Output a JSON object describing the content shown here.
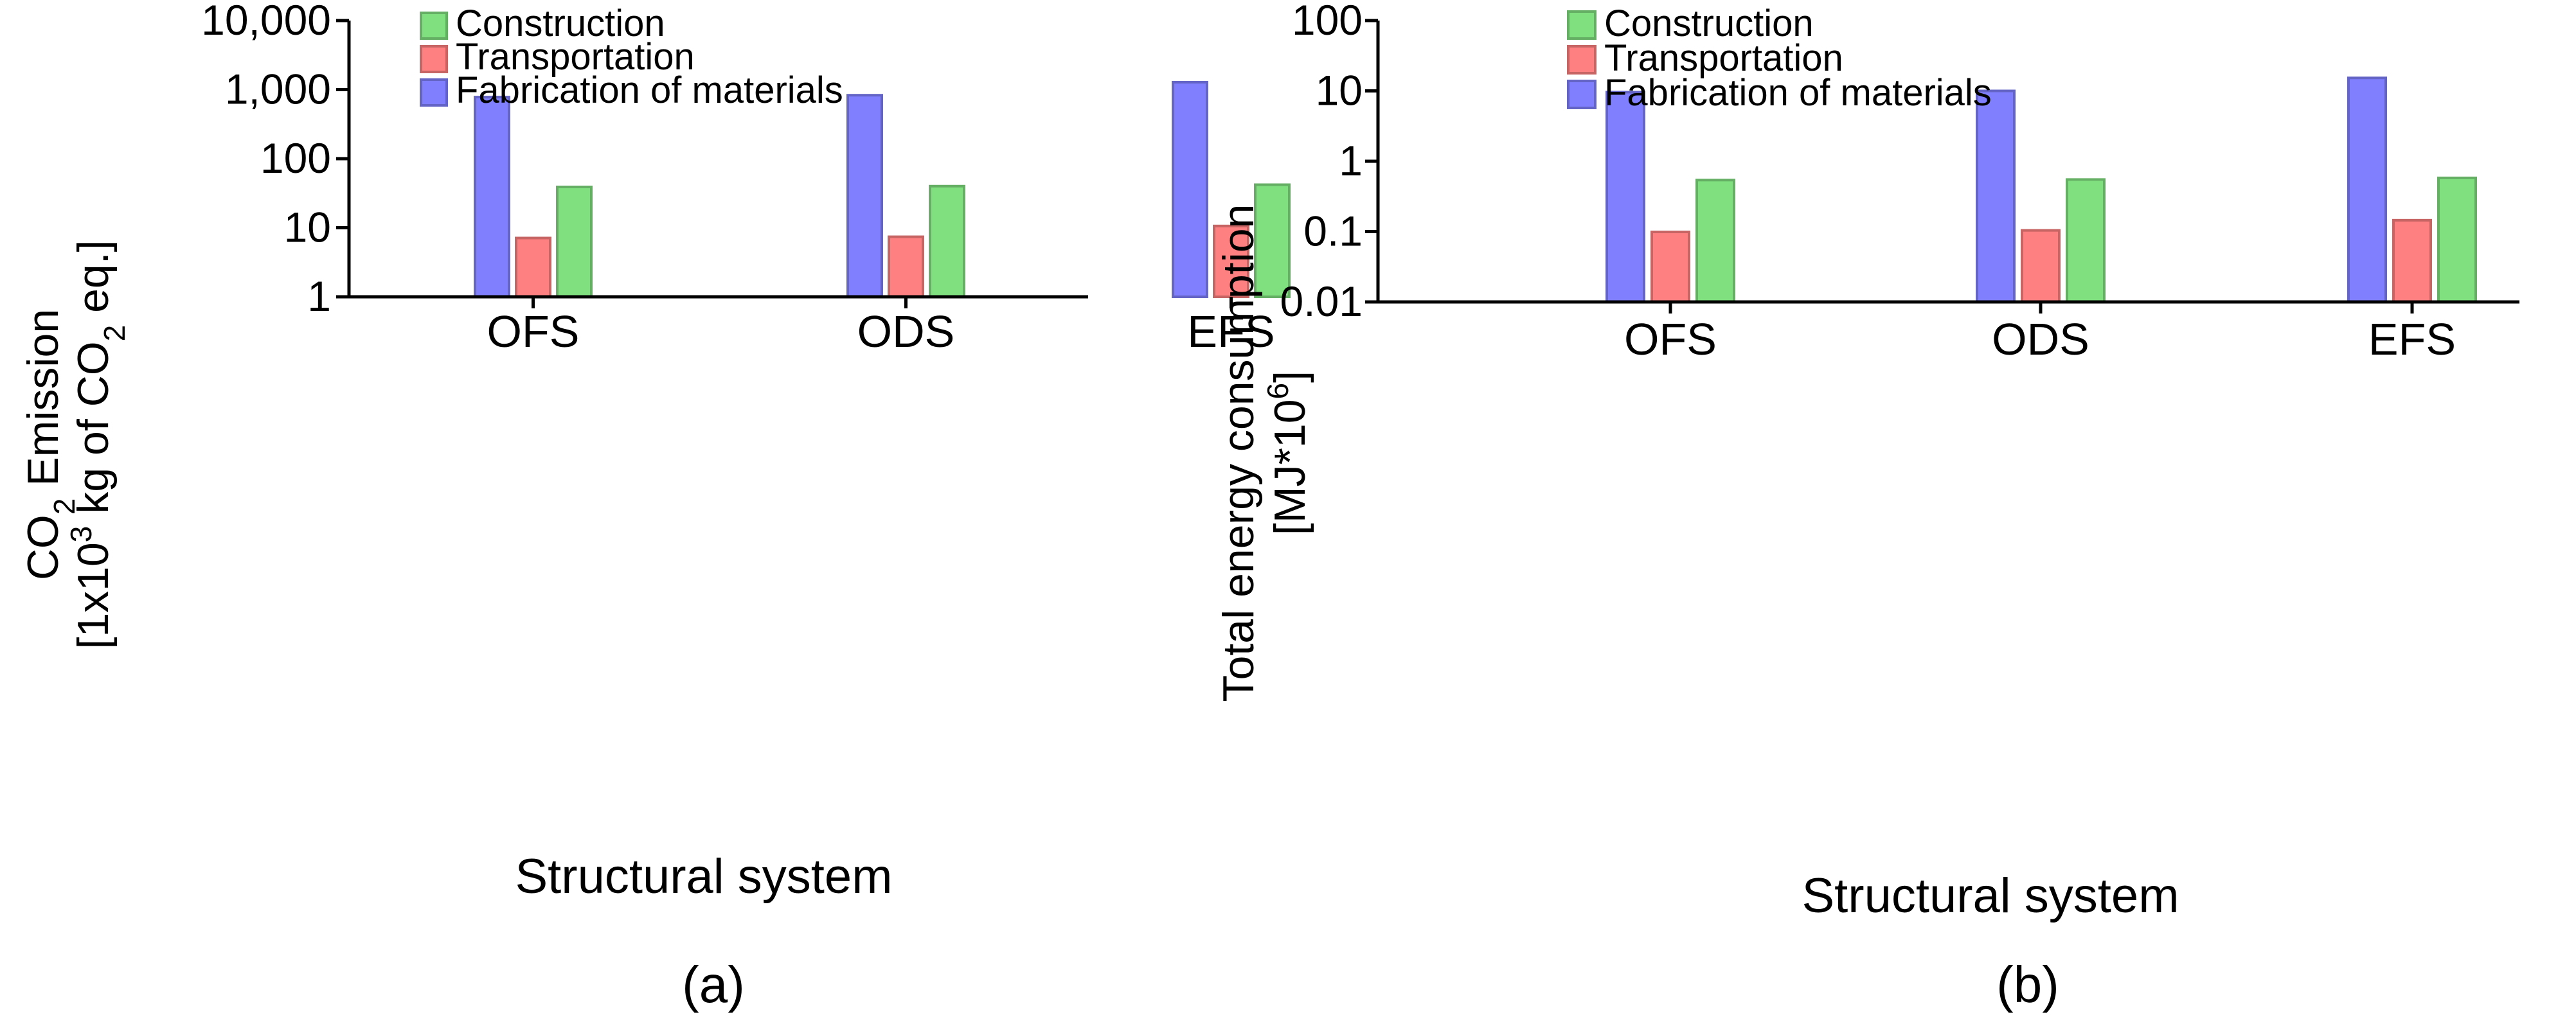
{
  "chart_data": [
    {
      "type": "bar",
      "panel_label": "(a)",
      "categories": [
        "OFS",
        "ODS",
        "EFS"
      ],
      "series": [
        {
          "name": "Fabrication of materials",
          "color": "#8080ff",
          "values": [
            780,
            830,
            1280
          ]
        },
        {
          "name": "Transportation",
          "color": "#ff8080",
          "values": [
            7.1,
            7.4,
            10.6
          ]
        },
        {
          "name": "Construction",
          "color": "#80e080",
          "values": [
            39,
            40,
            42
          ]
        }
      ],
      "legend_order": [
        "Construction",
        "Transportation",
        "Fabrication of materials"
      ],
      "xlabel": "Structural system",
      "ylabel_line1": "CO",
      "ylabel_line1_sub": "2",
      "ylabel_line1_rest": " Emission",
      "ylabel_line2_start": "[1x10",
      "ylabel_line2_sup": "3",
      "ylabel_line2_mid": " kg of CO",
      "ylabel_line2_sub": "2",
      "ylabel_line2_end": " eq.]",
      "yscale": "log",
      "ylim": [
        1,
        10000
      ],
      "yticks": [
        1,
        10,
        100,
        1000,
        10000
      ],
      "ytick_labels": [
        "1",
        "10",
        "100",
        "1,000",
        "10,000"
      ],
      "legend_position": "top",
      "grid": false
    },
    {
      "type": "bar",
      "panel_label": "(b)",
      "categories": [
        "OFS",
        "ODS",
        "EFS"
      ],
      "series": [
        {
          "name": "Fabrication of materials",
          "color": "#8080ff",
          "values": [
            9.6,
            10,
            15.3
          ]
        },
        {
          "name": "Transportation",
          "color": "#ff8080",
          "values": [
            0.099,
            0.104,
            0.145
          ]
        },
        {
          "name": "Construction",
          "color": "#80e080",
          "values": [
            0.54,
            0.55,
            0.58
          ]
        }
      ],
      "legend_order": [
        "Construction",
        "Transportation",
        "Fabrication of materials"
      ],
      "xlabel": "Structural system",
      "ylabel_line1": "Total energy consumption",
      "ylabel_line2_start": "[MJ*10",
      "ylabel_line2_sup": "6",
      "ylabel_line2_end": "]",
      "yscale": "log",
      "ylim": [
        0.01,
        100
      ],
      "yticks": [
        0.01,
        0.1,
        1,
        10,
        100
      ],
      "ytick_labels": [
        "0.01",
        "0.1",
        "1",
        "10",
        "100"
      ],
      "legend_position": "top",
      "grid": false
    }
  ]
}
